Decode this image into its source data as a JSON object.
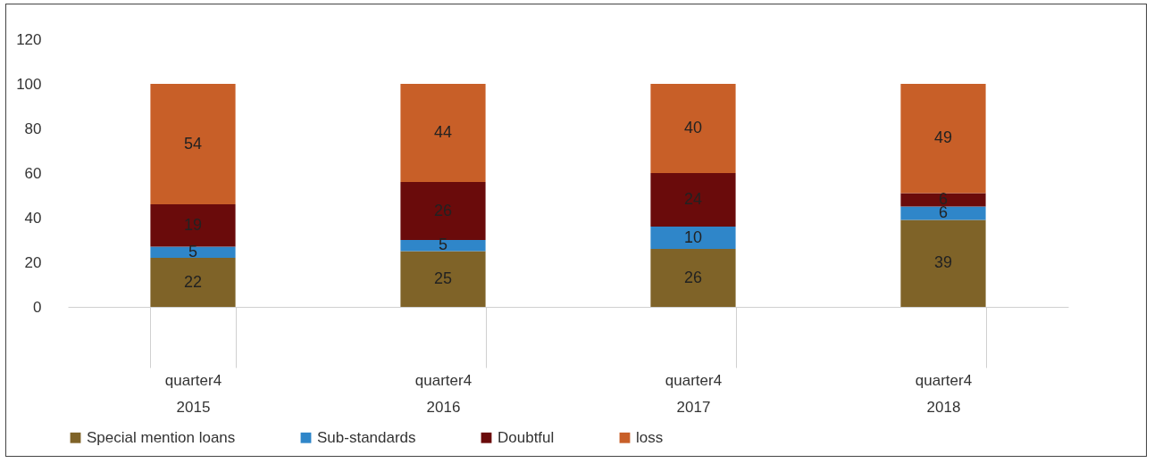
{
  "chart_data": {
    "type": "bar",
    "stacked": true,
    "data_labels": true,
    "legend": "bottom",
    "grid": false,
    "categories": [
      "quarter4\n2015",
      "quarter4\n2016",
      "quarter4\n2017",
      "quarter4\n2018"
    ],
    "ylim": [
      0,
      120
    ],
    "yticks": [
      0,
      20,
      40,
      60,
      80,
      100,
      120
    ],
    "series": [
      {
        "name": "Special mention loans",
        "color": "#7f6328",
        "values": [
          22,
          25,
          26,
          39
        ]
      },
      {
        "name": "Sub-standards",
        "color": "#2f86c9",
        "values": [
          5,
          5,
          10,
          6
        ]
      },
      {
        "name": "Doubtful",
        "color": "#6a0b0b",
        "values": [
          19,
          26,
          24,
          6
        ]
      },
      {
        "name": "loss",
        "color": "#c85f28",
        "values": [
          54,
          44,
          40,
          49
        ]
      }
    ]
  }
}
